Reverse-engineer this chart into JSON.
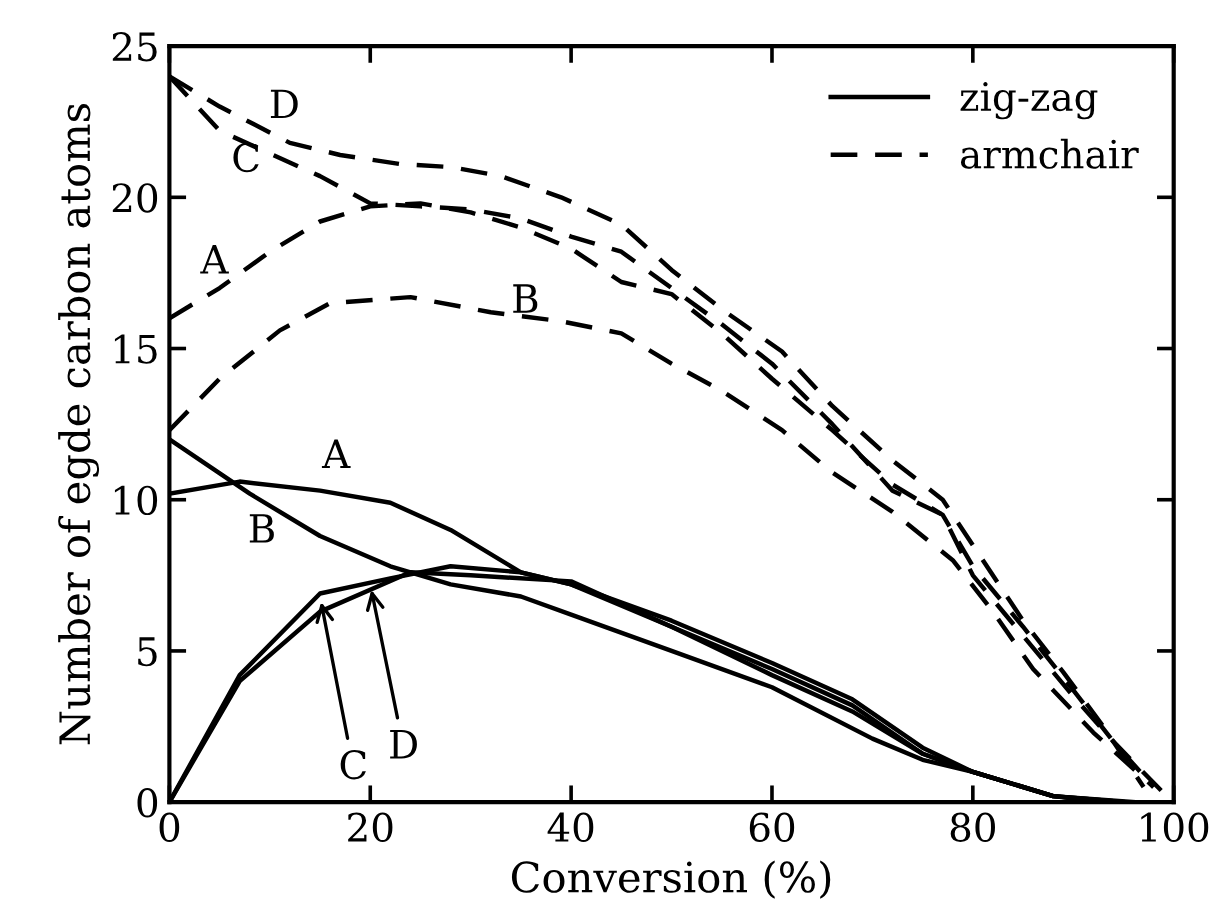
{
  "chart_data": {
    "type": "line",
    "xlabel": "Conversion (%)",
    "ylabel": "Number of egde carbon atoms",
    "xlim": [
      0,
      100
    ],
    "ylim": [
      0,
      25
    ],
    "xticks": [
      0,
      20,
      40,
      60,
      80,
      100
    ],
    "yticks": [
      0,
      5,
      10,
      15,
      20,
      25
    ],
    "grid": false,
    "legend": "top right",
    "marker": "none",
    "series": [
      {
        "name": "zig-zag",
        "color": "#000000",
        "line_style": "solid",
        "x": [
          0,
          7,
          15,
          22,
          28,
          35,
          40,
          50,
          60,
          68,
          75,
          80,
          88,
          95
        ],
        "values": [
          10.2,
          10.6,
          10.3,
          9.9,
          9,
          7.6,
          7.2,
          5.8,
          4.4,
          3.2,
          1.6,
          1,
          0.2,
          0
        ]
      },
      {
        "color": "#000000",
        "line_style": "solid",
        "x": [
          0,
          8,
          15,
          22,
          28,
          35,
          40,
          50,
          60,
          70,
          75,
          80,
          88,
          95
        ],
        "values": [
          12,
          10.2,
          8.8,
          7.8,
          7.2,
          6.8,
          6.2,
          5,
          3.8,
          2.1,
          1.4,
          1,
          0.2,
          0
        ]
      },
      {
        "color": "#000000",
        "line_style": "solid",
        "x": [
          0,
          7,
          15,
          22,
          28,
          35,
          40,
          50,
          60,
          68,
          75,
          80,
          88,
          96
        ],
        "values": [
          0,
          4.2,
          6.9,
          7.4,
          7.8,
          7.6,
          7.2,
          6,
          4.6,
          3.4,
          1.8,
          1,
          0.2,
          0
        ]
      },
      {
        "color": "#000000",
        "line_style": "solid",
        "x": [
          0,
          7,
          15,
          24,
          30,
          40,
          50,
          60,
          68,
          75,
          80,
          88,
          93
        ],
        "values": [
          0,
          4,
          6.3,
          7.6,
          7.5,
          7.3,
          5.8,
          4.2,
          3,
          1.6,
          1,
          0.2,
          0
        ]
      },
      {
        "name": "armchair",
        "color": "#000000",
        "line_style": "dashed",
        "x": [
          0,
          5,
          10,
          15,
          20,
          25,
          30,
          35,
          40,
          45,
          50,
          55,
          60,
          66,
          72,
          77,
          80,
          85,
          90,
          94,
          98
        ],
        "values": [
          16,
          17,
          18.2,
          19.2,
          19.7,
          19.8,
          19.5,
          19,
          18.3,
          17.2,
          16.8,
          15.5,
          14,
          12.3,
          10.5,
          9.5,
          7.8,
          5.8,
          3.7,
          2,
          0.5
        ]
      },
      {
        "color": "#000000",
        "line_style": "dashed",
        "x": [
          0,
          5,
          11,
          16,
          24,
          32,
          39,
          45,
          50,
          55,
          61,
          66,
          72,
          78,
          82,
          86,
          92,
          98
        ],
        "values": [
          12.3,
          14,
          15.6,
          16.5,
          16.7,
          16.2,
          15.9,
          15.5,
          14.5,
          13.6,
          12.3,
          10.9,
          9.6,
          8,
          6.3,
          4.4,
          2.3,
          0.5
        ]
      },
      {
        "color": "#000000",
        "line_style": "dashed",
        "x": [
          0,
          5,
          15,
          20,
          25,
          30,
          35,
          40,
          45,
          50,
          55,
          60,
          66,
          72,
          77,
          80,
          85,
          90,
          94,
          99
        ],
        "values": [
          24,
          22.2,
          20.7,
          19.8,
          19.7,
          19.6,
          19.3,
          18.7,
          18.2,
          17,
          15.8,
          14.5,
          12.5,
          10.3,
          9.5,
          7.5,
          5.5,
          3.5,
          2,
          0.3
        ]
      },
      {
        "color": "#000000",
        "line_style": "dashed",
        "x": [
          0,
          5,
          12,
          17,
          23,
          28,
          33,
          39,
          45,
          50,
          55,
          61,
          66,
          72,
          77,
          80,
          85,
          89,
          93,
          97
        ],
        "values": [
          24,
          23,
          21.8,
          21.4,
          21.1,
          21,
          20.7,
          20,
          19.1,
          17.6,
          16.3,
          14.9,
          13.1,
          11.3,
          10,
          8.5,
          6,
          4.3,
          2.5,
          0.5
        ]
      }
    ],
    "annotations": [
      {
        "text": "A",
        "x": 15.5,
        "y": 10.6
      },
      {
        "text": "B",
        "x": 10.6,
        "y": 9.6
      },
      {
        "text": "C",
        "x": 15,
        "y": 6.8
      },
      {
        "text": "D",
        "x": 20,
        "y": 7.2
      },
      {
        "text": "A",
        "x": 6.7,
        "y": 17.4
      },
      {
        "text": "B",
        "x": 36,
        "y": 16.1
      },
      {
        "text": "C",
        "x": 9.3,
        "y": 21.5
      },
      {
        "text": "D",
        "x": 12,
        "y": 21.8
      }
    ]
  }
}
